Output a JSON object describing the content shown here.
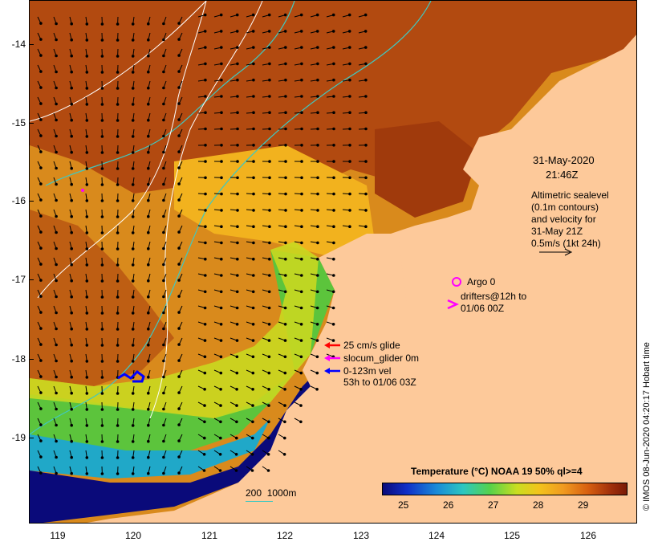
{
  "timestamp": {
    "date": "31-May-2020",
    "time": "21:46Z"
  },
  "altimetry_note": [
    "Altimetric sealevel",
    "(0.1m contours)",
    "and velocity for",
    "31-May 21Z",
    "0.5m/s (1kt 24h)"
  ],
  "argo_label": "Argo 0",
  "drifters_label": [
    "drifters@12h to",
    "01/06 00Z"
  ],
  "glider_legend": {
    "speed": "25 cm/s glide",
    "glider": "slocum_glider 0m",
    "velocity": "0-123m vel",
    "period": "53h to 01/06 03Z"
  },
  "colorbar": {
    "title": "Temperature (°C) NOAA 19 50% ql>=4",
    "ticks": [
      "25",
      "26",
      "27",
      "28",
      "29"
    ]
  },
  "isobath_legend": "200  1000m",
  "credit": "© IMOS 08-Jun-2020 04:20:17 Hobart time",
  "axes": {
    "y_ticks": [
      "-14",
      "-15",
      "-16",
      "-17",
      "-18",
      "-19"
    ],
    "x_ticks": [
      "119",
      "120",
      "121",
      "122",
      "123",
      "124",
      "125",
      "126"
    ]
  },
  "colors": {
    "land": "#fdc99a",
    "warm_sst": "#b24a10",
    "mid_sst": "#ef9f22",
    "cool_sst": "#2aa860",
    "cold_sst": "#0a0a7a",
    "isobath": "#40c8c0",
    "glider_red": "#ff0000",
    "glider_magenta": "#ff00ff",
    "glider_blue": "#0000ff",
    "argo_marker": "#ff00ff"
  }
}
